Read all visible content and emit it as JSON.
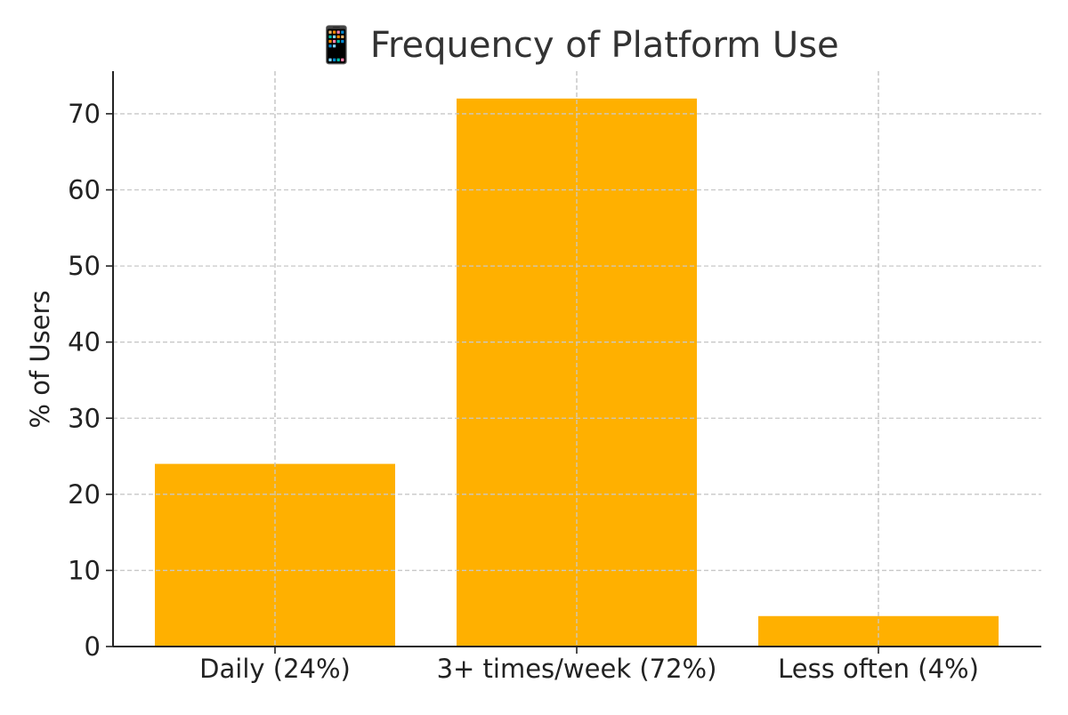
{
  "chart_data": {
    "type": "bar",
    "title": "📱 Frequency of Platform Use",
    "xlabel": "",
    "ylabel": "% of Users",
    "categories": [
      "Daily (24%)",
      "3+ times/week (72%)",
      "Less often (4%)"
    ],
    "values": [
      24,
      72,
      4
    ],
    "ylim": [
      0,
      75.6
    ],
    "yticks": [
      0,
      10,
      20,
      30,
      40,
      50,
      60,
      70
    ],
    "ytick_labels": [
      "0",
      "10",
      "20",
      "30",
      "40",
      "50",
      "60",
      "70"
    ],
    "grid": true,
    "legend": "none",
    "bar_color": "#FFB000"
  }
}
